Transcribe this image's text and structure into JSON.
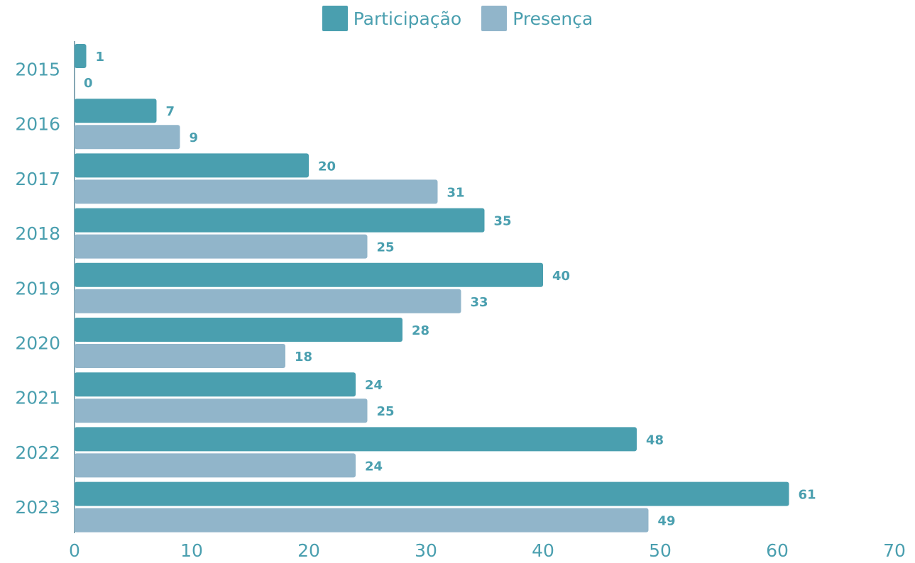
{
  "chart_data": {
    "type": "bar",
    "orientation": "horizontal",
    "categories": [
      "2015",
      "2016",
      "2017",
      "2018",
      "2019",
      "2020",
      "2021",
      "2022",
      "2023"
    ],
    "series": [
      {
        "name": "Participação",
        "color": "#4a9faf",
        "values": [
          1,
          7,
          20,
          35,
          40,
          28,
          24,
          48,
          61
        ]
      },
      {
        "name": "Presença",
        "color": "#91b5ca",
        "values": [
          0,
          9,
          31,
          25,
          33,
          18,
          25,
          24,
          49
        ]
      }
    ],
    "xlim": [
      0,
      70
    ],
    "xticks": [
      0,
      10,
      20,
      30,
      40,
      50,
      60,
      70
    ],
    "grid": false,
    "legend_position": "top-center",
    "text_color": "#4a9faf"
  }
}
